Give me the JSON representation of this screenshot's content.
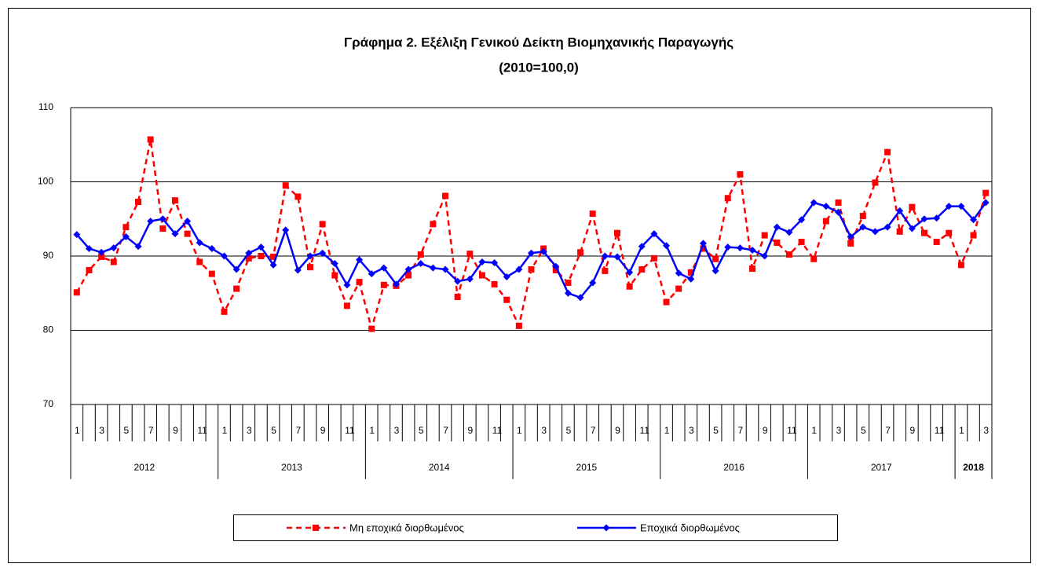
{
  "chart_data": {
    "type": "line",
    "title": "Γράφημα 2. Εξέλιξη Γενικού Δείκτη Βιομηχανικής Παραγωγής",
    "subtitle": "(2010=100,0)",
    "categories": [
      "1",
      null,
      "3",
      null,
      "5",
      null,
      "7",
      null,
      "9",
      null,
      "11",
      null,
      "1",
      null,
      "3",
      null,
      "5",
      null,
      "7",
      null,
      "9",
      null,
      "11",
      null,
      "1",
      null,
      "3",
      null,
      "5",
      null,
      "7",
      null,
      "9",
      null,
      "11",
      null,
      "1",
      null,
      "3",
      null,
      "5",
      null,
      "7",
      null,
      "9",
      null,
      "11",
      null,
      "1",
      null,
      "3",
      null,
      "5",
      null,
      "7",
      null,
      "9",
      null,
      "11",
      null,
      "1",
      null,
      "3",
      null,
      "5",
      null,
      "7",
      null,
      "9",
      null,
      "11",
      null,
      "1",
      null,
      "3"
    ],
    "years": [
      "2012",
      "2013",
      "2014",
      "2015",
      "2016",
      "2017",
      "2018"
    ],
    "series": [
      {
        "name": "Μη εποχικά διορθωμένος",
        "color": "#ff0000",
        "dashed": true,
        "marker": "square",
        "values": [
          85.1,
          88.1,
          89.9,
          89.2,
          93.9,
          97.3,
          105.7,
          93.7,
          97.5,
          93.0,
          89.2,
          87.6,
          82.5,
          85.6,
          89.7,
          90.0,
          89.9,
          99.5,
          98.0,
          88.5,
          94.3,
          87.4,
          83.3,
          86.5,
          80.2,
          86.1,
          86.0,
          87.4,
          90.2,
          94.3,
          98.1,
          84.5,
          90.3,
          87.4,
          86.2,
          84.1,
          80.6,
          88.2,
          91.0,
          88.1,
          86.4,
          90.5,
          95.7,
          88.0,
          93.1,
          85.9,
          88.2,
          89.7,
          83.8,
          85.6,
          87.8,
          91.0,
          89.6,
          97.8,
          101.0,
          88.3,
          92.8,
          91.8,
          90.2,
          91.9,
          89.6,
          94.7,
          97.2,
          91.7,
          95.4,
          99.9,
          104.0,
          93.3,
          96.6,
          93.1,
          91.9,
          93.1,
          88.8,
          92.8,
          98.5
        ]
      },
      {
        "name": "Εποχικά διορθωμένος",
        "color": "#0000ff",
        "dashed": false,
        "marker": "diamond",
        "values": [
          92.9,
          91.0,
          90.5,
          91.1,
          92.6,
          91.3,
          94.7,
          95.0,
          93.0,
          94.7,
          91.8,
          91.0,
          90.0,
          88.2,
          90.4,
          91.2,
          88.8,
          93.5,
          88.1,
          90.0,
          90.4,
          89.0,
          86.1,
          89.5,
          87.6,
          88.4,
          86.2,
          88.2,
          89.0,
          88.4,
          88.2,
          86.6,
          86.9,
          89.2,
          89.1,
          87.2,
          88.2,
          90.4,
          90.6,
          88.6,
          85.0,
          84.4,
          86.4,
          90.0,
          89.9,
          87.8,
          91.3,
          93.0,
          91.4,
          87.7,
          86.9,
          91.7,
          88.0,
          91.2,
          91.1,
          90.8,
          90.0,
          93.9,
          93.2,
          94.9,
          97.2,
          96.7,
          95.9,
          92.6,
          93.9,
          93.3,
          93.9,
          96.1,
          93.7,
          95.0,
          95.1,
          96.7,
          96.7,
          94.9,
          97.2
        ]
      }
    ],
    "ylim": [
      70,
      110
    ],
    "yticks": [
      70,
      80,
      90,
      100,
      110
    ],
    "grid": true,
    "legend": "bottom"
  }
}
